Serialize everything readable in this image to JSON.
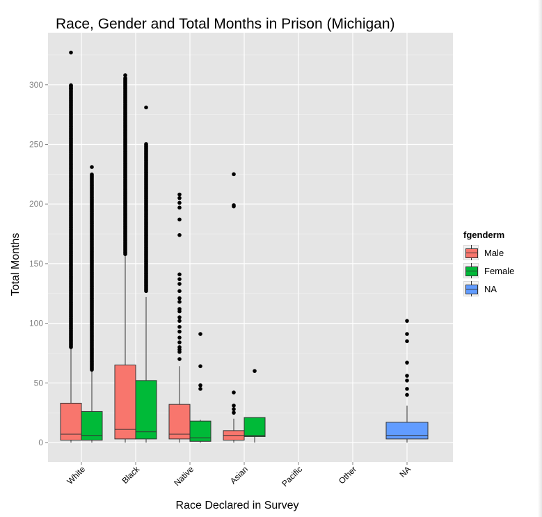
{
  "chart_data": {
    "type": "box",
    "title": "Race, Gender and Total Months in Prison (Michigan)",
    "xlabel": "Race Declared in Survey",
    "ylabel": "Total Months",
    "categories": [
      "White",
      "Black",
      "Native",
      "Asian",
      "Pacific",
      "Other",
      "NA"
    ],
    "ylim": [
      -16,
      342
    ],
    "yticks": [
      0,
      50,
      100,
      150,
      200,
      250,
      300
    ],
    "grid": true,
    "legend": {
      "title": "fgenderm",
      "position": "right",
      "entries": [
        {
          "label": "Male",
          "color": "#F8766D"
        },
        {
          "label": "Female",
          "color": "#00BA38"
        },
        {
          "label": "NA",
          "color": "#619CFF"
        }
      ]
    },
    "series": [
      {
        "category": "White",
        "group": "Male",
        "q1": 2,
        "median": 7,
        "q3": 33,
        "whisker_low": 0,
        "whisker_high": 80,
        "outliers_range": [
          80,
          300
        ],
        "outliers_top": [
          327,
          299,
          297
        ]
      },
      {
        "category": "White",
        "group": "Female",
        "q1": 2,
        "median": 6,
        "q3": 26,
        "whisker_low": 0,
        "whisker_high": 61,
        "outliers_range": [
          61,
          225
        ],
        "outliers_top": [
          231
        ]
      },
      {
        "category": "Black",
        "group": "Male",
        "q1": 3,
        "median": 11,
        "q3": 65,
        "whisker_low": 0,
        "whisker_high": 158,
        "outliers_range": [
          158,
          306
        ],
        "outliers_top": [
          308
        ]
      },
      {
        "category": "Black",
        "group": "Female",
        "q1": 3,
        "median": 9,
        "q3": 52,
        "whisker_low": 0,
        "whisker_high": 122,
        "outliers_range": [
          127,
          251
        ],
        "outliers_top": [
          281
        ]
      },
      {
        "category": "Native",
        "group": "Male",
        "q1": 3,
        "median": 7,
        "q3": 32,
        "whisker_low": 0,
        "whisker_high": 64,
        "outliers": [
          70,
          76,
          78,
          80,
          84,
          88,
          93,
          97,
          102,
          105,
          110,
          112,
          118,
          121,
          127,
          133,
          137,
          141,
          174,
          187,
          197,
          201,
          205,
          208
        ]
      },
      {
        "category": "Native",
        "group": "Female",
        "q1": 1,
        "median": 4,
        "q3": 18,
        "whisker_low": 0,
        "whisker_high": 19,
        "outliers": [
          45,
          48,
          64,
          91
        ]
      },
      {
        "category": "Asian",
        "group": "Male",
        "q1": 2,
        "median": 6,
        "q3": 10,
        "whisker_low": 0,
        "whisker_high": 20,
        "outliers": [
          25,
          28,
          31,
          42,
          198,
          199,
          225
        ]
      },
      {
        "category": "Asian",
        "group": "Female",
        "q1": 5,
        "median": 6,
        "q3": 21,
        "whisker_low": 0,
        "whisker_high": 21,
        "outliers": [
          60
        ]
      },
      {
        "category": "NA",
        "group": "NA",
        "q1": 3,
        "median": 6,
        "q3": 17,
        "whisker_low": 0,
        "whisker_high": 31,
        "outliers": [
          40,
          45,
          52,
          56,
          67,
          85,
          91,
          102
        ]
      }
    ]
  }
}
